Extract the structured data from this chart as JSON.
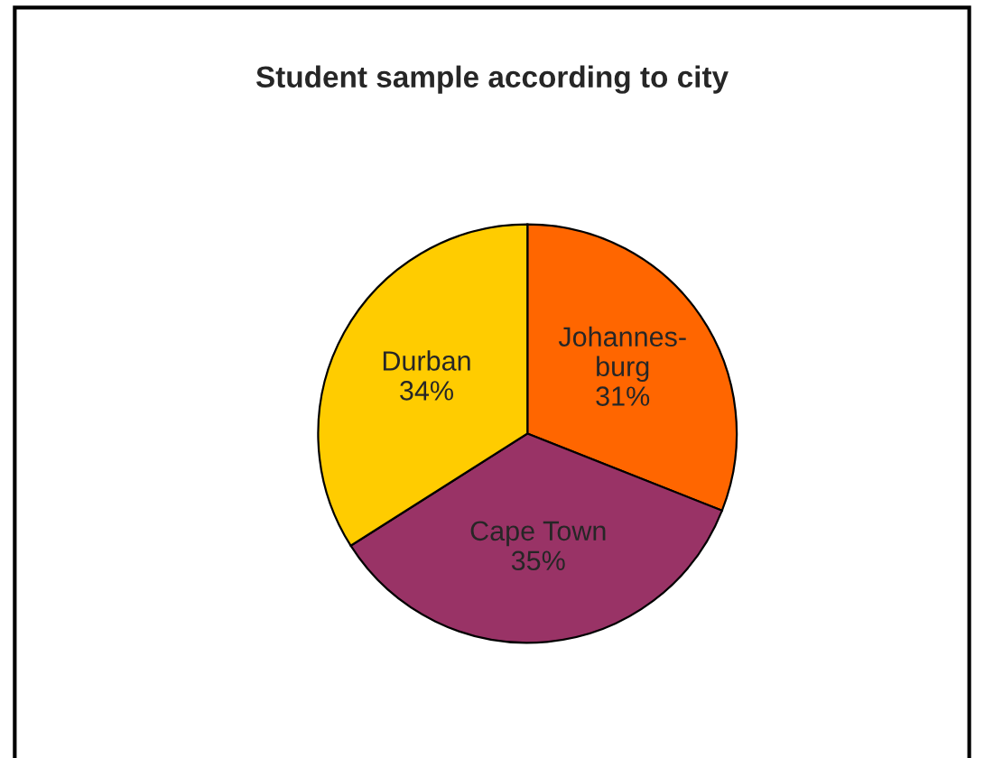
{
  "chart_data": {
    "type": "pie",
    "title": "Student sample according to city",
    "categories": [
      "Johannes-\nburg",
      "Cape Town",
      "Durban"
    ],
    "values": [
      31,
      35,
      34
    ],
    "value_labels": [
      "31%",
      "35%",
      "34%"
    ],
    "colors": [
      "#ff6600",
      "#993366",
      "#ffcc00"
    ],
    "legend": false
  }
}
